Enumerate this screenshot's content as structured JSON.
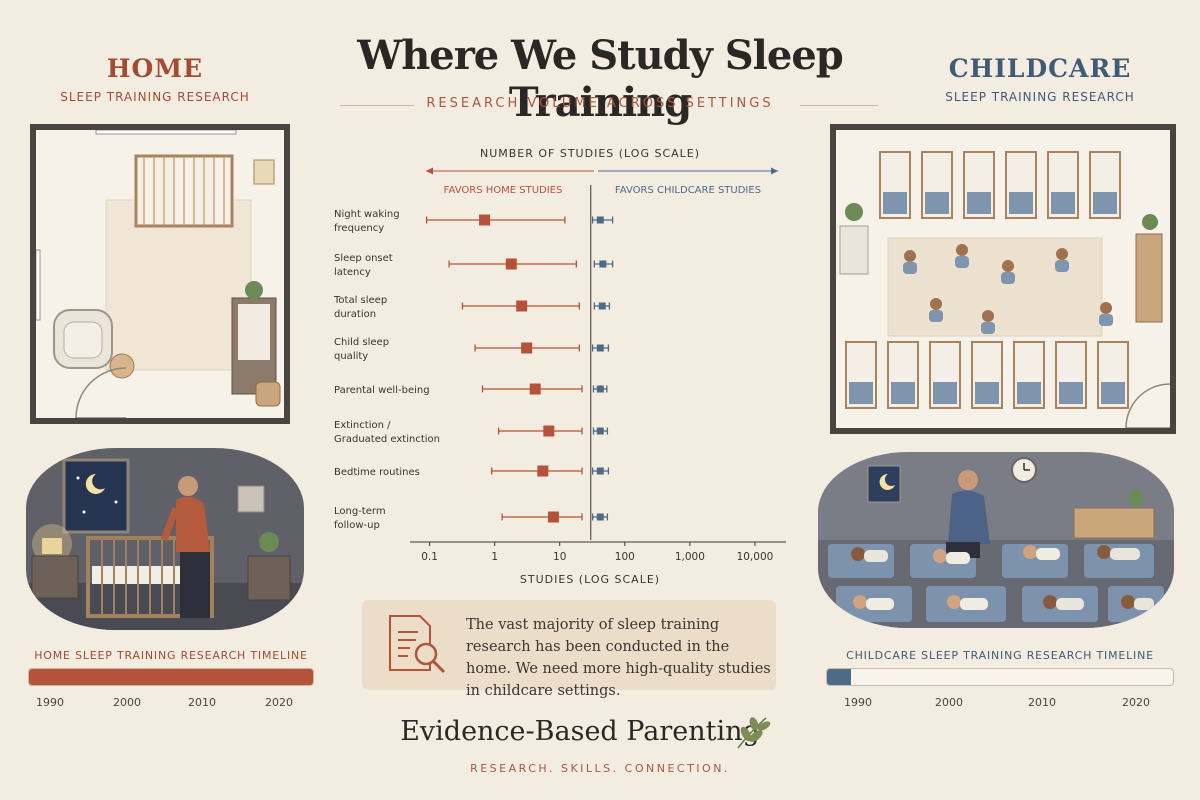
{
  "title": "Where We Study Sleep Training",
  "subtitle": "RESEARCH VOLUME ACROSS SETTINGS",
  "home": {
    "title": "HOME",
    "subtitle": "SLEEP TRAINING RESEARCH",
    "timeline_label": "HOME SLEEP TRAINING RESEARCH TIMELINE",
    "timeline_years": [
      "1990",
      "2000",
      "2010",
      "2020"
    ],
    "timeline_fill": 1.0
  },
  "childcare": {
    "title": "CHILDCARE",
    "subtitle": "SLEEP TRAINING RESEARCH",
    "timeline_label": "CHILDCARE SLEEP TRAINING RESEARCH TIMELINE",
    "timeline_years": [
      "1990",
      "2000",
      "2010",
      "2020"
    ],
    "timeline_fill": 0.07
  },
  "note": {
    "text": "The vast majority of sleep training research has been conducted in the home. We need more high-quality studies in childcare settings.",
    "icon": "document-magnifier-icon"
  },
  "brand": "Evidence-Based Parenting",
  "brand_icon": "sprig-leaf-icon",
  "tagline": "RESEARCH.  SKILLS.  CONNECTION.",
  "colors": {
    "home": "#b4533a",
    "childcare": "#4d6b87",
    "background": "#f3ece0",
    "ink": "#3a3530"
  },
  "chart_data": {
    "type": "forest",
    "title": "NUMBER OF STUDIES (LOG SCALE)",
    "xlabel": "STUDIES (LOG SCALE)",
    "xscale": "log",
    "xlim": [
      0.05,
      30000
    ],
    "xticks": [
      0.1,
      1,
      10,
      100,
      1000,
      10000
    ],
    "xtick_labels": [
      "0.1",
      "1",
      "10",
      "100",
      "1,000",
      "10,000"
    ],
    "divider_x": 30,
    "left_label": "FAVORS HOME STUDIES",
    "right_label": "FAVORS CHILDCARE STUDIES",
    "categories": [
      "Night waking\nfrequency",
      "Sleep onset\nlatency",
      "Total sleep\nduration",
      "Child sleep\nquality",
      "Parental well-being",
      "Extinction /\nGraduated extinction",
      "Bedtime routines",
      "Long-term\nfollow-up"
    ],
    "series": [
      {
        "name": "Home",
        "points": [
          {
            "est": 0.7,
            "lo": 0.09,
            "hi": 12
          },
          {
            "est": 1.8,
            "lo": 0.2,
            "hi": 18
          },
          {
            "est": 2.6,
            "lo": 0.32,
            "hi": 20
          },
          {
            "est": 3.1,
            "lo": 0.5,
            "hi": 20
          },
          {
            "est": 4.2,
            "lo": 0.65,
            "hi": 22
          },
          {
            "est": 6.8,
            "lo": 1.15,
            "hi": 22
          },
          {
            "est": 5.5,
            "lo": 0.9,
            "hi": 22
          },
          {
            "est": 8.0,
            "lo": 1.3,
            "hi": 22
          }
        ]
      },
      {
        "name": "Childcare",
        "points": [
          {
            "est": 42,
            "lo": 32,
            "hi": 65
          },
          {
            "est": 46,
            "lo": 34,
            "hi": 65
          },
          {
            "est": 45,
            "lo": 34,
            "hi": 58
          },
          {
            "est": 42,
            "lo": 32,
            "hi": 56
          },
          {
            "est": 42,
            "lo": 33,
            "hi": 53
          },
          {
            "est": 42,
            "lo": 33,
            "hi": 54
          },
          {
            "est": 42,
            "lo": 32,
            "hi": 56
          },
          {
            "est": 42,
            "lo": 32,
            "hi": 54
          }
        ]
      }
    ]
  }
}
